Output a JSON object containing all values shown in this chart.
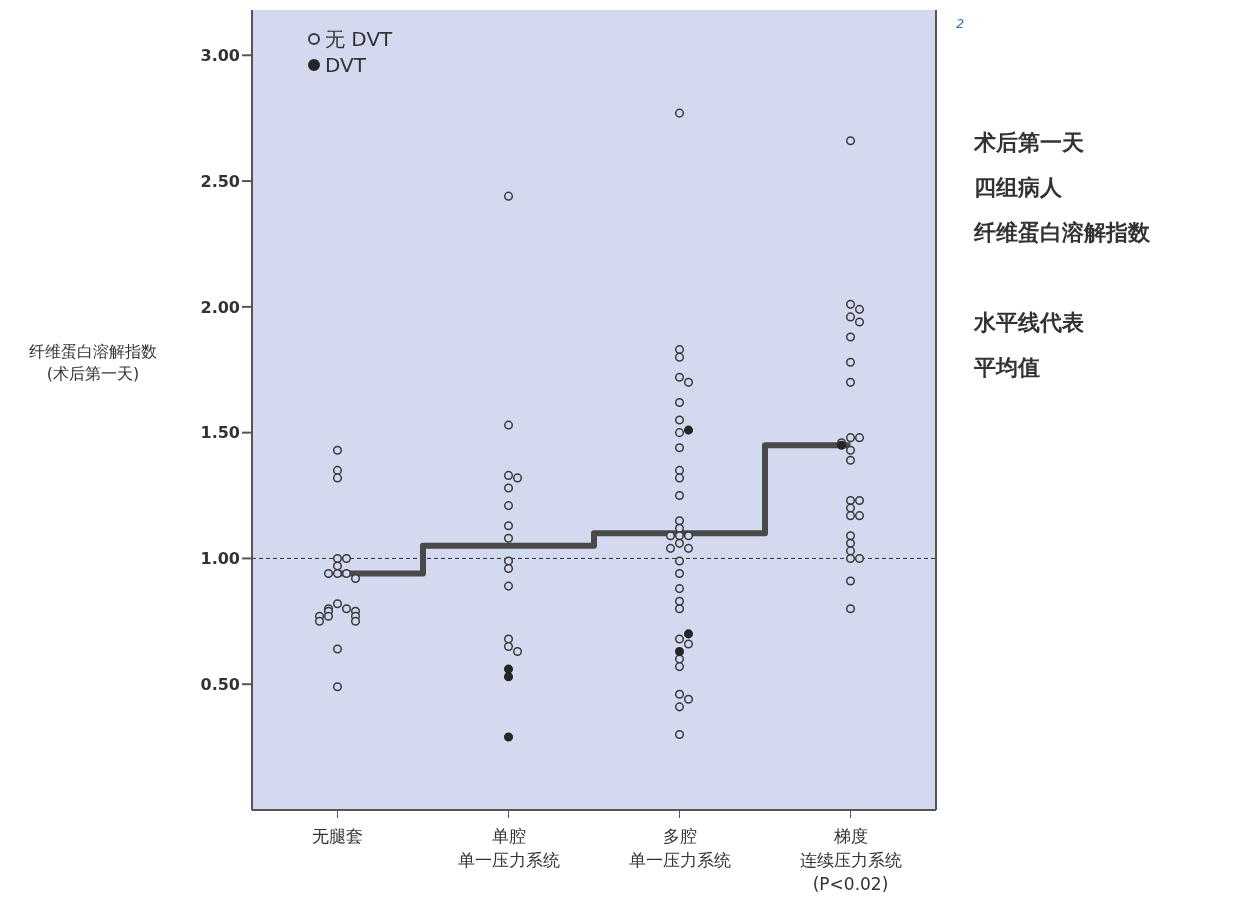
{
  "chart_data": {
    "type": "scatter",
    "ylabel": "纤维蛋白溶解指数\n(术后第一天)",
    "categories": [
      "无腿套",
      "单腔单一压力系统",
      "多腔单一压力系统",
      "梯度连续压力系统(P<0.02)"
    ],
    "series": [
      {
        "type": "step",
        "color": "#4a4a4a",
        "values": [
          0.94,
          1.05,
          1.1,
          1.45
        ]
      },
      {
        "name": "无 DVT",
        "marker": "circle",
        "color": "#3a3a3a",
        "x": [
          "无腿套",
          "无腿套",
          "无腿套",
          "无腿套",
          "无腿套",
          "无腿套",
          "无腿套",
          "无腿套",
          "无腿套",
          "无腿套",
          "无腿套",
          "无腿套",
          "无腿套",
          "无腿套",
          "无腿套",
          "无腿套",
          "无腿套",
          "无腿套",
          "无腿套",
          "无腿套",
          "无腿套",
          "无腿套",
          "单腔单一压力系统",
          "单腔单一压力系统",
          "单腔单一压力系统",
          "单腔单一压力系统",
          "单腔单一压力系统",
          "单腔单一压力系统",
          "单腔单一压力系统",
          "单腔单一压力系统",
          "单腔单一压力系统",
          "单腔单一压力系统",
          "单腔单一压力系统",
          "单腔单一压力系统",
          "单腔单一压力系统",
          "单腔单一压力系统",
          "多腔单一压力系统",
          "多腔单一压力系统",
          "多腔单一压力系统",
          "多腔单一压力系统",
          "多腔单一压力系统",
          "多腔单一压力系统",
          "多腔单一压力系统",
          "多腔单一压力系统",
          "多腔单一压力系统",
          "多腔单一压力系统",
          "多腔单一压力系统",
          "多腔单一压力系统",
          "多腔单一压力系统",
          "多腔单一压力系统",
          "多腔单一压力系统",
          "多腔单一压力系统",
          "多腔单一压力系统",
          "多腔单一压力系统",
          "多腔单一压力系统",
          "多腔单一压力系统",
          "多腔单一压力系统",
          "多腔单一压力系统",
          "多腔单一压力系统",
          "多腔单一压力系统",
          "多腔单一压力系统",
          "多腔单一压力系统",
          "多腔单一压力系统",
          "多腔单一压力系统",
          "多腔单一压力系统",
          "多腔单一压力系统",
          "多腔单一压力系统",
          "多腔单一压力系统",
          "多腔单一压力系统",
          "梯度连续压力系统(P<0.02)",
          "梯度连续压力系统(P<0.02)",
          "梯度连续压力系统(P<0.02)",
          "梯度连续压力系统(P<0.02)",
          "梯度连续压力系统(P<0.02)",
          "梯度连续压力系统(P<0.02)",
          "梯度连续压力系统(P<0.02)",
          "梯度连续压力系统(P<0.02)",
          "梯度连续压力系统(P<0.02)",
          "梯度连续压力系统(P<0.02)",
          "梯度连续压力系统(P<0.02)",
          "梯度连续压力系统(P<0.02)",
          "梯度连续压力系统(P<0.02)",
          "梯度连续压力系统(P<0.02)",
          "梯度连续压力系统(P<0.02)",
          "梯度连续压力系统(P<0.02)",
          "梯度连续压力系统(P<0.02)",
          "梯度连续压力系统(P<0.02)",
          "梯度连续压力系统(P<0.02)",
          "梯度连续压力系统(P<0.02)",
          "梯度连续压力系统(P<0.02)",
          "梯度连续压力系统(P<0.02)",
          "梯度连续压力系统(P<0.02)",
          "梯度连续压力系统(P<0.02)",
          "梯度连续压力系统(P<0.02)"
        ],
        "values": [
          1.43,
          1.35,
          1.32,
          1.0,
          1.0,
          0.97,
          0.94,
          0.94,
          0.94,
          0.92,
          0.82,
          0.8,
          0.8,
          0.79,
          0.79,
          0.77,
          0.77,
          0.77,
          0.75,
          0.75,
          0.64,
          0.49,
          2.44,
          1.53,
          1.33,
          1.32,
          1.28,
          1.21,
          1.13,
          1.08,
          0.99,
          0.96,
          0.89,
          0.68,
          0.65,
          0.63,
          2.77,
          1.83,
          1.8,
          1.72,
          1.7,
          1.62,
          1.55,
          1.5,
          1.44,
          1.35,
          1.32,
          1.25,
          1.15,
          1.12,
          1.09,
          1.09,
          1.09,
          1.06,
          1.04,
          1.04,
          0.99,
          0.94,
          0.88,
          0.83,
          0.8,
          0.68,
          0.66,
          0.6,
          0.57,
          0.46,
          0.44,
          0.41,
          0.3,
          2.66,
          2.01,
          1.99,
          1.96,
          1.94,
          1.88,
          1.78,
          1.7,
          1.48,
          1.48,
          1.46,
          1.43,
          1.39,
          1.23,
          1.23,
          1.2,
          1.17,
          1.17,
          1.09,
          1.06,
          1.03,
          1.0,
          1.0,
          0.91,
          0.8
        ]
      },
      {
        "name": "DVT",
        "marker": "circle",
        "color": "#262626",
        "x": [
          "单腔单一压力系统",
          "单腔单一压力系统",
          "单腔单一压力系统",
          "多腔单一压力系统",
          "多腔单一压力系统",
          "多腔单一压力系统",
          "梯度连续压力系统(P<0.02)"
        ],
        "values": [
          0.56,
          0.53,
          0.29,
          1.51,
          0.7,
          0.63,
          1.45
        ]
      }
    ],
    "ylim": [
      0,
      3.18
    ],
    "yticks": [
      {
        "value": 0.5,
        "label": "0.50"
      },
      {
        "value": 1,
        "label": "1.00"
      },
      {
        "value": 1.5,
        "label": "1.50"
      },
      {
        "value": 2,
        "label": "2.00"
      },
      {
        "value": 2.5,
        "label": "2.50"
      },
      {
        "value": 3,
        "label": "3.00"
      }
    ],
    "ref_lines": [
      {
        "axis": "y",
        "value": 1,
        "color": "#333333",
        "line_style": "dashed"
      }
    ],
    "legend": "top left",
    "grid": false,
    "annotations": [
      "2",
      "术后第一天",
      "四组病人",
      "纤维蛋白溶解指数",
      "水平线代表",
      "平均值"
    ]
  }
}
